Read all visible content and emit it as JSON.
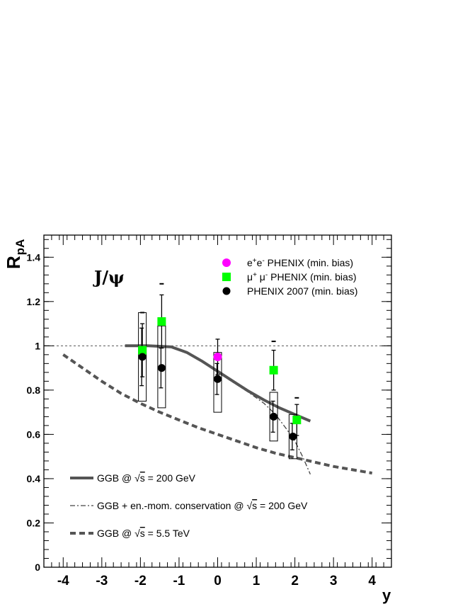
{
  "chart_data": {
    "type": "scatter",
    "xlabel": "y",
    "ylabel_main": "R",
    "ylabel_sub": "pA",
    "xlim": [
      -4.5,
      4.5
    ],
    "ylim": [
      0,
      1.5
    ],
    "x_ticks": [
      -4,
      -3,
      -2,
      -1,
      0,
      1,
      2,
      3,
      4
    ],
    "x_tick_labels": [
      "-4",
      "-3",
      "-2",
      "-1",
      "0",
      "1",
      "2",
      "3",
      "4"
    ],
    "y_ticks": [
      0,
      0.2,
      0.4,
      0.6,
      0.8,
      1.0,
      1.2,
      1.4
    ],
    "y_tick_labels": [
      "0",
      "0.2",
      "0.4",
      "0.6",
      "0.8",
      "1",
      "1.2",
      "1.4"
    ],
    "reference_line": 1.0,
    "annotation": "J/ψ",
    "legend_top": [
      {
        "text_main": "e",
        "sup1": "+",
        "text_mid": "e",
        "sup2": "-",
        "text_end": " PHENIX (min. bias)",
        "marker": "circle",
        "color": "#ff00ff"
      },
      {
        "text_main": "μ",
        "sup1": "+",
        "text_mid": " μ",
        "sup2": "-",
        "text_end": " PHENIX (min. bias)",
        "marker": "square",
        "color": "#00ff00"
      },
      {
        "text_main": "PHENIX 2007 (min. bias)",
        "sup1": "",
        "text_mid": "",
        "sup2": "",
        "text_end": "",
        "marker": "circle",
        "color": "#000000"
      }
    ],
    "legend_bottom": [
      {
        "pre": "GGB @ ",
        "root": "s",
        "post": " = 200 GeV",
        "style": "solid"
      },
      {
        "pre": "GGB + en.-mom. conservation @ ",
        "root": "s",
        "post": " = 200 GeV",
        "style": "dashdot"
      },
      {
        "pre": "GGB @ ",
        "root": "s",
        "post": " = 5.5 TeV",
        "style": "dashed"
      }
    ],
    "series": [
      {
        "marker": "circle",
        "color": "#ff00ff",
        "points": [
          {
            "x": 0.0,
            "y": 0.95,
            "err": 0.08
          }
        ]
      },
      {
        "marker": "square",
        "color": "#00ff00",
        "points": [
          {
            "x": -1.95,
            "y": 0.98,
            "err": 0.12,
            "syst": 0.17
          },
          {
            "x": -1.45,
            "y": 1.11,
            "err": 0.12,
            "syst": 0.17
          },
          {
            "x": 1.45,
            "y": 0.89,
            "err": 0.09,
            "syst": 0.13
          },
          {
            "x": 2.05,
            "y": 0.665,
            "err": 0.07,
            "syst": 0.1
          }
        ]
      },
      {
        "marker": "circle",
        "color": "#000000",
        "points": [
          {
            "x": -1.95,
            "y": 0.95,
            "err": 0.13,
            "box": [
              0.75,
              1.15
            ]
          },
          {
            "x": -1.45,
            "y": 0.9,
            "err": 0.09,
            "box": [
              0.72,
              1.09
            ]
          },
          {
            "x": 0.0,
            "y": 0.85,
            "err": 0.07,
            "box": [
              0.7,
              0.97
            ]
          },
          {
            "x": 1.45,
            "y": 0.68,
            "err": 0.07,
            "box": [
              0.57,
              0.79
            ]
          },
          {
            "x": 1.95,
            "y": 0.59,
            "err": 0.06,
            "box": [
              0.49,
              0.69
            ]
          }
        ]
      }
    ],
    "curves": {
      "ggb_200": [
        [
          -2.4,
          1.0
        ],
        [
          -1.8,
          1.0
        ],
        [
          -1.2,
          0.995
        ],
        [
          -0.8,
          0.97
        ],
        [
          -0.4,
          0.93
        ],
        [
          0,
          0.885
        ],
        [
          0.4,
          0.84
        ],
        [
          0.8,
          0.795
        ],
        [
          1.2,
          0.755
        ],
        [
          1.6,
          0.72
        ],
        [
          2.0,
          0.69
        ],
        [
          2.4,
          0.66
        ]
      ],
      "ggb_conservation": [
        [
          0,
          0.88
        ],
        [
          0.4,
          0.835
        ],
        [
          0.8,
          0.79
        ],
        [
          1.2,
          0.74
        ],
        [
          1.5,
          0.69
        ],
        [
          1.8,
          0.62
        ],
        [
          2.0,
          0.57
        ],
        [
          2.2,
          0.5
        ],
        [
          2.4,
          0.42
        ]
      ],
      "ggb_5500": [
        [
          -4,
          0.96
        ],
        [
          -3.5,
          0.9
        ],
        [
          -3,
          0.84
        ],
        [
          -2.5,
          0.785
        ],
        [
          -2,
          0.74
        ],
        [
          -1.5,
          0.7
        ],
        [
          -1,
          0.665
        ],
        [
          -0.5,
          0.63
        ],
        [
          0,
          0.6
        ],
        [
          0.5,
          0.57
        ],
        [
          1,
          0.54
        ],
        [
          1.5,
          0.515
        ],
        [
          2,
          0.495
        ],
        [
          2.5,
          0.475
        ],
        [
          3,
          0.455
        ],
        [
          3.5,
          0.44
        ],
        [
          4,
          0.425
        ]
      ]
    }
  }
}
